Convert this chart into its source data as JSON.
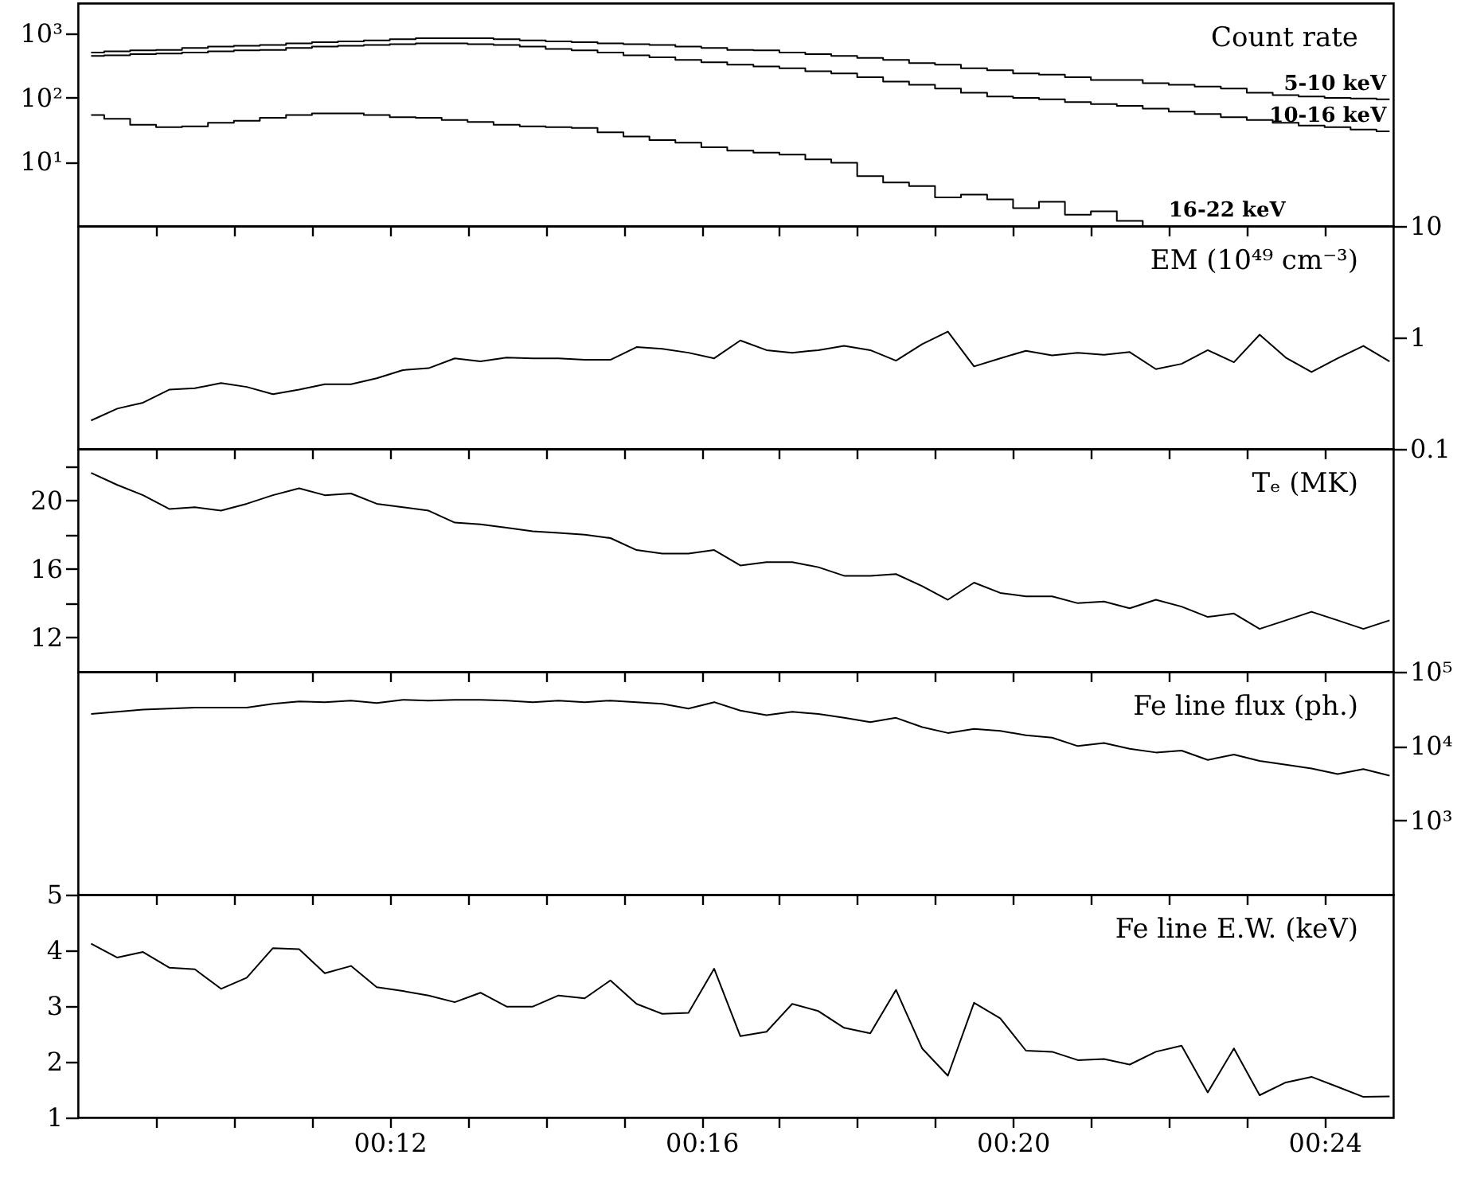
{
  "chart_data": [
    {
      "type": "step",
      "title": "Count rate",
      "x": [
        0.1361,
        0.1417,
        0.1472,
        0.1528,
        0.1583,
        0.1639,
        0.1694,
        0.175,
        0.1806,
        0.1861,
        0.1917,
        0.1972,
        0.2028,
        0.2083,
        0.2139,
        0.2194,
        0.225,
        0.2306,
        0.2361,
        0.2417,
        0.2472,
        0.2528,
        0.2583,
        0.2639,
        0.2694,
        0.275,
        0.2806,
        0.2861,
        0.2917,
        0.2972,
        0.3028,
        0.3083,
        0.3139,
        0.3194,
        0.325,
        0.3306,
        0.3361,
        0.3417,
        0.3472,
        0.3528,
        0.3583,
        0.3639,
        0.3694,
        0.375,
        0.3806,
        0.3861,
        0.3917,
        0.3972,
        0.4028,
        0.4083,
        0.4139
      ],
      "series": [
        {
          "name": "5-10 keV",
          "color": "#000000",
          "values": [
            510,
            530,
            550,
            560,
            600,
            630,
            650,
            670,
            710,
            740,
            760,
            790,
            820,
            850,
            850,
            850,
            820,
            790,
            760,
            740,
            710,
            690,
            670,
            630,
            600,
            560,
            550,
            510,
            480,
            450,
            420,
            390,
            350,
            330,
            290,
            270,
            240,
            230,
            210,
            190,
            190,
            170,
            160,
            150,
            140,
            120,
            110,
            105,
            100,
            98,
            95
          ]
        },
        {
          "name": "10-16 keV",
          "color": "#000000",
          "values": [
            450,
            460,
            480,
            490,
            510,
            530,
            550,
            560,
            600,
            630,
            650,
            670,
            690,
            710,
            710,
            690,
            670,
            630,
            580,
            550,
            510,
            460,
            430,
            390,
            360,
            330,
            310,
            290,
            260,
            240,
            210,
            180,
            160,
            140,
            120,
            105,
            100,
            95,
            86,
            80,
            75,
            68,
            61,
            56,
            50,
            45,
            41,
            37,
            35,
            32,
            30
          ]
        },
        {
          "name": "16-22 keV",
          "color": "#000000",
          "values": [
            54,
            47,
            38,
            35,
            36,
            41,
            44,
            49,
            54,
            57,
            57,
            54,
            50,
            49,
            45,
            42,
            38,
            36,
            35,
            34,
            29,
            25,
            22,
            20,
            17,
            15,
            14,
            13,
            11,
            9.7,
            6.0,
            4.8,
            4.2,
            2.8,
            3.1,
            2.6,
            1.9,
            2.4,
            1.5,
            1.7,
            1.2,
            1.0,
            null,
            null,
            null,
            null,
            null,
            null,
            null,
            null,
            null
          ]
        }
      ],
      "xlim": [
        0.1333,
        0.4147
      ],
      "xticks": [
        {
          "value": 0.15,
          "label": null
        },
        {
          "value": 0.1667,
          "label": null
        },
        {
          "value": 0.1833,
          "label": null
        },
        {
          "value": 0.2,
          "label": null
        },
        {
          "value": 0.2167,
          "label": null
        },
        {
          "value": 0.2333,
          "label": null
        },
        {
          "value": 0.25,
          "label": null
        },
        {
          "value": 0.2667,
          "label": null
        },
        {
          "value": 0.2833,
          "label": null
        },
        {
          "value": 0.3,
          "label": null
        },
        {
          "value": 0.3167,
          "label": null
        },
        {
          "value": 0.3333,
          "label": null
        },
        {
          "value": 0.35,
          "label": null
        },
        {
          "value": 0.3667,
          "label": null
        },
        {
          "value": 0.3833,
          "label": null
        },
        {
          "value": 0.4,
          "label": null
        }
      ],
      "ylim": [
        1,
        3000
      ],
      "yticks": [
        {
          "value": 10,
          "label": "10¹"
        },
        {
          "value": 100,
          "label": "10²"
        },
        {
          "value": 1000,
          "label": "10³"
        }
      ],
      "log": true,
      "tick_labels": "y"
    },
    {
      "type": "line",
      "title": "EM (10⁴⁹ cm⁻³)",
      "x": [
        0.1361,
        0.1417,
        0.1472,
        0.1528,
        0.1583,
        0.1639,
        0.1694,
        0.175,
        0.1806,
        0.1861,
        0.1917,
        0.1972,
        0.2028,
        0.2083,
        0.2139,
        0.2194,
        0.225,
        0.2306,
        0.2361,
        0.2417,
        0.2472,
        0.2528,
        0.2583,
        0.2639,
        0.2694,
        0.275,
        0.2806,
        0.2861,
        0.2917,
        0.2972,
        0.3028,
        0.3083,
        0.3139,
        0.3194,
        0.325,
        0.3306,
        0.3361,
        0.3417,
        0.3472,
        0.3528,
        0.3583,
        0.3639,
        0.3694,
        0.375,
        0.3806,
        0.3861,
        0.3917,
        0.3972,
        0.4028,
        0.4083,
        0.4139
      ],
      "series": [
        {
          "color": "#000000",
          "axis": "y2",
          "values": [
            0.18,
            0.23,
            0.26,
            0.34,
            0.35,
            0.39,
            0.36,
            0.31,
            0.34,
            0.38,
            0.38,
            0.43,
            0.51,
            0.53,
            0.65,
            0.61,
            0.66,
            0.65,
            0.65,
            0.63,
            0.63,
            0.82,
            0.79,
            0.73,
            0.65,
            0.94,
            0.77,
            0.73,
            0.77,
            0.84,
            0.77,
            0.62,
            0.87,
            1.13,
            0.55,
            0.65,
            0.76,
            0.69,
            0.73,
            0.7,
            0.74,
            0.52,
            0.58,
            0.77,
            0.6,
            1.06,
            0.66,
            0.49,
            0.65,
            0.84,
            0.61
          ]
        }
      ],
      "xlim": [
        0.1333,
        0.4147
      ],
      "xticks": [
        {
          "value": 0.15,
          "label": null
        },
        {
          "value": 0.1667,
          "label": null
        },
        {
          "value": 0.1833,
          "label": null
        },
        {
          "value": 0.2,
          "label": null
        },
        {
          "value": 0.2167,
          "label": null
        },
        {
          "value": 0.2333,
          "label": null
        },
        {
          "value": 0.25,
          "label": null
        },
        {
          "value": 0.2667,
          "label": null
        },
        {
          "value": 0.2833,
          "label": null
        },
        {
          "value": 0.3,
          "label": null
        },
        {
          "value": 0.3167,
          "label": null
        },
        {
          "value": 0.3333,
          "label": null
        },
        {
          "value": 0.35,
          "label": null
        },
        {
          "value": 0.3667,
          "label": null
        },
        {
          "value": 0.3833,
          "label": null
        },
        {
          "value": 0.4,
          "label": null
        }
      ],
      "y2lim": [
        0.1,
        10
      ],
      "y2ticks": [
        0.1,
        1,
        10
      ],
      "log": "y2",
      "tick_labels": "y"
    },
    {
      "type": "line",
      "title": "Tₑ (MK)",
      "x": [
        0.1361,
        0.1417,
        0.1472,
        0.1528,
        0.1583,
        0.1639,
        0.1694,
        0.175,
        0.1806,
        0.1861,
        0.1917,
        0.1972,
        0.2028,
        0.2083,
        0.2139,
        0.2194,
        0.225,
        0.2306,
        0.2361,
        0.2417,
        0.2472,
        0.2528,
        0.2583,
        0.2639,
        0.2694,
        0.275,
        0.2806,
        0.2861,
        0.2917,
        0.2972,
        0.3028,
        0.3083,
        0.3139,
        0.3194,
        0.325,
        0.3306,
        0.3361,
        0.3417,
        0.3472,
        0.3528,
        0.3583,
        0.3639,
        0.3694,
        0.375,
        0.3806,
        0.3861,
        0.3917,
        0.3972,
        0.4028,
        0.4083,
        0.4139
      ],
      "series": [
        {
          "color": "#000000",
          "values": [
            21.6,
            20.9,
            20.3,
            19.5,
            19.6,
            19.4,
            19.8,
            20.3,
            20.7,
            20.3,
            20.4,
            19.8,
            19.6,
            19.4,
            18.7,
            18.6,
            18.4,
            18.2,
            18.1,
            18.0,
            17.8,
            17.1,
            16.9,
            16.9,
            17.1,
            16.2,
            16.4,
            16.4,
            16.1,
            15.6,
            15.6,
            15.7,
            15.0,
            14.2,
            15.2,
            14.6,
            14.4,
            14.4,
            14.0,
            14.1,
            13.7,
            14.2,
            13.8,
            13.2,
            13.4,
            12.5,
            13.0,
            13.5,
            13.0,
            12.5,
            13.0
          ]
        }
      ],
      "xlim": [
        0.1333,
        0.4147
      ],
      "xticks": [
        {
          "value": 0.15,
          "label": null
        },
        {
          "value": 0.1667,
          "label": null
        },
        {
          "value": 0.1833,
          "label": null
        },
        {
          "value": 0.2,
          "label": null
        },
        {
          "value": 0.2167,
          "label": null
        },
        {
          "value": 0.2333,
          "label": null
        },
        {
          "value": 0.25,
          "label": null
        },
        {
          "value": 0.2667,
          "label": null
        },
        {
          "value": 0.2833,
          "label": null
        },
        {
          "value": 0.3,
          "label": null
        },
        {
          "value": 0.3167,
          "label": null
        },
        {
          "value": 0.3333,
          "label": null
        },
        {
          "value": 0.35,
          "label": null
        },
        {
          "value": 0.3667,
          "label": null
        },
        {
          "value": 0.3833,
          "label": null
        },
        {
          "value": 0.4,
          "label": null
        }
      ],
      "ylim": [
        10,
        23
      ],
      "yticks": [
        12,
        {
          "value": 14,
          "label": null
        },
        16,
        {
          "value": 18,
          "label": null
        },
        20,
        {
          "value": 22,
          "label": null
        }
      ],
      "tick_labels": "y"
    },
    {
      "type": "line",
      "title": "Fe line flux (ph.)",
      "x": [
        0.1361,
        0.1417,
        0.1472,
        0.1528,
        0.1583,
        0.1639,
        0.1694,
        0.175,
        0.1806,
        0.1861,
        0.1917,
        0.1972,
        0.2028,
        0.2083,
        0.2139,
        0.2194,
        0.225,
        0.2306,
        0.2361,
        0.2417,
        0.2472,
        0.2528,
        0.2583,
        0.2639,
        0.2694,
        0.275,
        0.2806,
        0.2861,
        0.2917,
        0.2972,
        0.3028,
        0.3083,
        0.3139,
        0.3194,
        0.325,
        0.3306,
        0.3361,
        0.3417,
        0.3472,
        0.3528,
        0.3583,
        0.3639,
        0.3694,
        0.375,
        0.3806,
        0.3861,
        0.3917,
        0.3972,
        0.4028,
        0.4083,
        0.4139
      ],
      "series": [
        {
          "color": "#000000",
          "axis": "y2",
          "values": [
            27000,
            29000,
            31000,
            32000,
            33000,
            33000,
            33000,
            37000,
            40000,
            39000,
            41000,
            38000,
            42000,
            41000,
            42000,
            42000,
            41000,
            39000,
            41000,
            39000,
            41000,
            39000,
            37000,
            32000,
            39000,
            30000,
            26000,
            29000,
            27000,
            24000,
            21000,
            24000,
            18000,
            15000,
            17000,
            16000,
            14000,
            13000,
            10000,
            11000,
            9200,
            8200,
            8700,
            6500,
            7700,
            6300,
            5600,
            5000,
            4200,
            4900,
            4000
          ]
        }
      ],
      "xlim": [
        0.1333,
        0.4147
      ],
      "xticks": [
        {
          "value": 0.15,
          "label": null
        },
        {
          "value": 0.1667,
          "label": null
        },
        {
          "value": 0.1833,
          "label": null
        },
        {
          "value": 0.2,
          "label": null
        },
        {
          "value": 0.2167,
          "label": null
        },
        {
          "value": 0.2333,
          "label": null
        },
        {
          "value": 0.25,
          "label": null
        },
        {
          "value": 0.2667,
          "label": null
        },
        {
          "value": 0.2833,
          "label": null
        },
        {
          "value": 0.3,
          "label": null
        },
        {
          "value": 0.3167,
          "label": null
        },
        {
          "value": 0.3333,
          "label": null
        },
        {
          "value": 0.35,
          "label": null
        },
        {
          "value": 0.3667,
          "label": null
        },
        {
          "value": 0.3833,
          "label": null
        },
        {
          "value": 0.4,
          "label": null
        }
      ],
      "y2lim": [
        100,
        100000
      ],
      "y2ticks": [
        {
          "value": 1000,
          "label": "10³"
        },
        {
          "value": 10000,
          "label": "10⁴"
        },
        {
          "value": 100000,
          "label": "10⁵"
        }
      ],
      "log": "y2",
      "tick_labels": "y"
    },
    {
      "type": "line",
      "title": "Fe line E.W. (keV)",
      "x": [
        0.1361,
        0.1417,
        0.1472,
        0.1528,
        0.1583,
        0.1639,
        0.1694,
        0.175,
        0.1806,
        0.1861,
        0.1917,
        0.1972,
        0.2028,
        0.2083,
        0.2139,
        0.2194,
        0.225,
        0.2306,
        0.2361,
        0.2417,
        0.2472,
        0.2528,
        0.2583,
        0.2639,
        0.2694,
        0.275,
        0.2806,
        0.2861,
        0.2917,
        0.2972,
        0.3028,
        0.3083,
        0.3139,
        0.3194,
        0.325,
        0.3306,
        0.3361,
        0.3417,
        0.3472,
        0.3528,
        0.3583,
        0.3639,
        0.3694,
        0.375,
        0.3806,
        0.3861,
        0.3917,
        0.3972,
        0.4028,
        0.4083,
        0.4139
      ],
      "series": [
        {
          "color": "#000000",
          "values": [
            4.12,
            3.87,
            3.97,
            3.69,
            3.66,
            3.31,
            3.51,
            4.04,
            4.02,
            3.59,
            3.72,
            3.34,
            3.27,
            3.19,
            3.07,
            3.24,
            2.99,
            2.99,
            3.19,
            3.14,
            3.46,
            3.04,
            2.86,
            2.88,
            3.67,
            2.46,
            2.54,
            3.04,
            2.91,
            2.61,
            2.51,
            3.29,
            2.24,
            1.75,
            3.06,
            2.78,
            2.2,
            2.18,
            2.03,
            2.05,
            1.95,
            2.18,
            2.29,
            1.45,
            2.24,
            1.4,
            1.63,
            1.73,
            1.55,
            1.37,
            1.38
          ]
        }
      ],
      "xlim": [
        0.1333,
        0.4147
      ],
      "xticks": [
        {
          "value": 0.15,
          "label": null
        },
        {
          "value": 0.1667,
          "label": null
        },
        {
          "value": 0.1833,
          "label": null
        },
        {
          "value": 0.2,
          "label": "00:12"
        },
        {
          "value": 0.2167,
          "label": null
        },
        {
          "value": 0.2333,
          "label": null
        },
        {
          "value": 0.25,
          "label": null
        },
        {
          "value": 0.2667,
          "label": "00:16"
        },
        {
          "value": 0.2833,
          "label": null
        },
        {
          "value": 0.3,
          "label": null
        },
        {
          "value": 0.3167,
          "label": null
        },
        {
          "value": 0.3333,
          "label": "00:20"
        },
        {
          "value": 0.35,
          "label": null
        },
        {
          "value": 0.3667,
          "label": null
        },
        {
          "value": 0.3833,
          "label": null
        },
        {
          "value": 0.4,
          "label": "00:24"
        }
      ],
      "ylim": [
        1,
        5
      ],
      "yticks": [
        1,
        2,
        3,
        4,
        5
      ]
    }
  ]
}
